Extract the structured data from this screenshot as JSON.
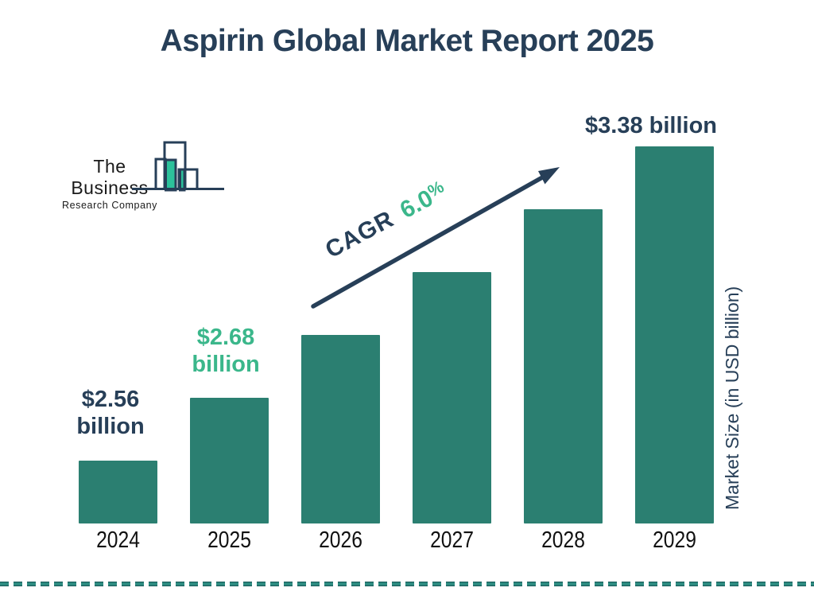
{
  "colors": {
    "navy": "#273f58",
    "teal": "#2b7f71",
    "green": "#3bb78b",
    "logo_green": "#2cc19b",
    "dash": "#2f9185",
    "dash_edge": "#1f6562",
    "year_text": "#111111",
    "logo_text": "#1a1a1a"
  },
  "header": {
    "title": "Aspirin Global Market Report 2025"
  },
  "logo": {
    "line1": "The Business",
    "line2": "Research Company"
  },
  "cagr": {
    "label": "CAGR",
    "value": "6.0",
    "percent_sign": "%"
  },
  "y_axis": {
    "label": "Market Size (in USD billion)"
  },
  "value_labels": [
    {
      "line1": "$2.56",
      "line2": "billion"
    },
    {
      "line1": "$2.68",
      "line2": "billion"
    },
    {
      "line1": "$3.38 billion",
      "line2": ""
    }
  ],
  "chart_data": {
    "type": "bar",
    "title": "Aspirin Global Market Report 2025",
    "categories": [
      "2024",
      "2025",
      "2026",
      "2027",
      "2028",
      "2029"
    ],
    "values": [
      2.56,
      2.68,
      2.84,
      3.01,
      3.19,
      3.38
    ],
    "values_estimated_for": [
      "2026",
      "2027",
      "2028"
    ],
    "unit": "USD billion",
    "ylabel": "Market Size (in USD billion)",
    "xlabel": "",
    "cagr_percent": 6.0,
    "bar_color": "#2b7f71",
    "legend": false,
    "grid": false,
    "value_labels_shown": {
      "2024": "$2.56 billion",
      "2025": "$2.68 billion",
      "2029": "$3.38 billion"
    }
  }
}
